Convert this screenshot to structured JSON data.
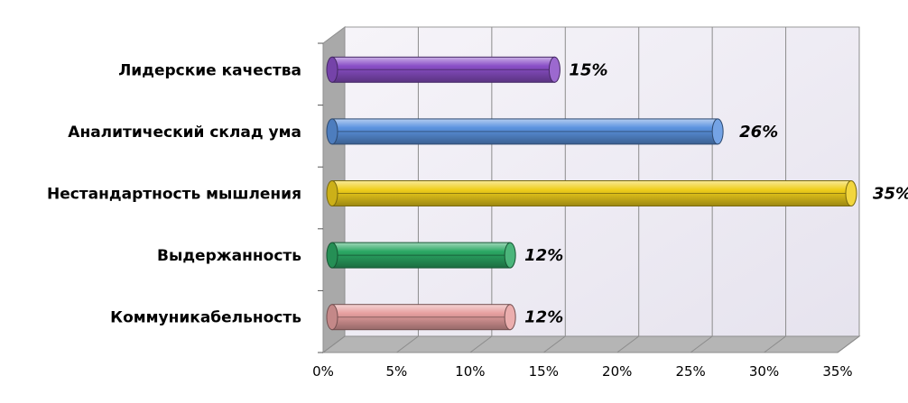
{
  "chart_data": {
    "type": "bar",
    "orientation": "horizontal",
    "style": "3d-cylinder",
    "categories": [
      "Лидерские качества",
      "Аналитический склад ума",
      "Нестандартность мышления",
      "Выдержанность",
      "Коммуникабельность"
    ],
    "values": [
      15,
      26,
      35,
      12,
      12
    ],
    "data_labels": [
      "15%",
      "26%",
      "35%",
      "12%",
      "12%"
    ],
    "bar_colors": [
      "#8a4fc7",
      "#5b93e0",
      "#f0cf1c",
      "#2ba864",
      "#e7a0a0"
    ],
    "xlim": [
      0,
      35
    ],
    "x_ticks": [
      "0%",
      "5%",
      "10%",
      "15%",
      "20%",
      "25%",
      "30%",
      "35%"
    ],
    "grid": true,
    "legend": "none"
  }
}
